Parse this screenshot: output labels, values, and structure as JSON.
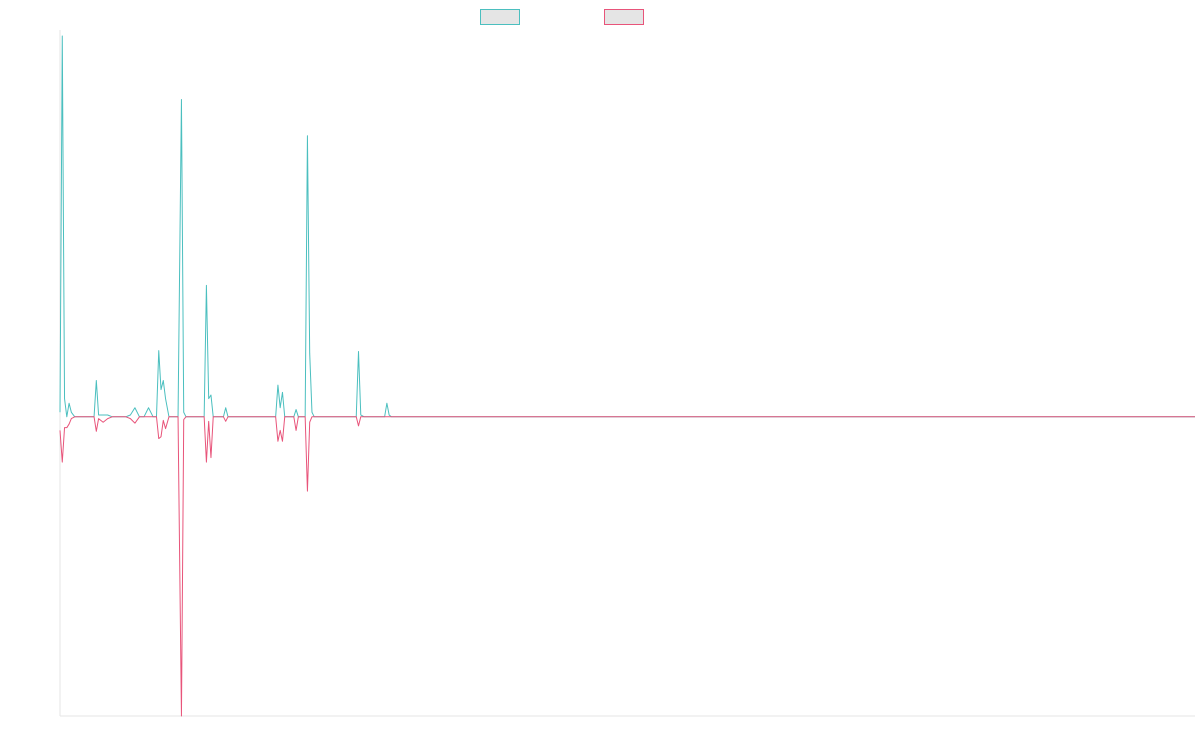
{
  "chart_data": {
    "type": "line",
    "title": "",
    "xlabel": "",
    "ylabel": "",
    "grid": false,
    "legend": "top-center",
    "xlim": [
      0,
      1000
    ],
    "ylim": [
      -33,
      42
    ],
    "series": [
      {
        "name": "",
        "color": "#4bbfbf",
        "points": [
          [
            0,
            0.5
          ],
          [
            2,
            42
          ],
          [
            4,
            2
          ],
          [
            6,
            0
          ],
          [
            8,
            1.5
          ],
          [
            10,
            0.5
          ],
          [
            13,
            0
          ],
          [
            16,
            0
          ],
          [
            20,
            0
          ],
          [
            24,
            0
          ],
          [
            28,
            0
          ],
          [
            30,
            0
          ],
          [
            32,
            4
          ],
          [
            34,
            0.2
          ],
          [
            38,
            0.2
          ],
          [
            42,
            0.2
          ],
          [
            46,
            0
          ],
          [
            52,
            0
          ],
          [
            58,
            0
          ],
          [
            62,
            0.2
          ],
          [
            66,
            1
          ],
          [
            70,
            0
          ],
          [
            74,
            0
          ],
          [
            78,
            1
          ],
          [
            82,
            0
          ],
          [
            85,
            0
          ],
          [
            87,
            7.3
          ],
          [
            89,
            3
          ],
          [
            91,
            4
          ],
          [
            93,
            2
          ],
          [
            96,
            0
          ],
          [
            100,
            0
          ],
          [
            104,
            0
          ],
          [
            107,
            35
          ],
          [
            109,
            0.5
          ],
          [
            111,
            0
          ],
          [
            116,
            0
          ],
          [
            120,
            0
          ],
          [
            124,
            0
          ],
          [
            127,
            0
          ],
          [
            129,
            14.5
          ],
          [
            131,
            2
          ],
          [
            133,
            2.4
          ],
          [
            135,
            0
          ],
          [
            140,
            0
          ],
          [
            144,
            0
          ],
          [
            146,
            1
          ],
          [
            148,
            0
          ],
          [
            152,
            0
          ],
          [
            160,
            0
          ],
          [
            168,
            0
          ],
          [
            176,
            0
          ],
          [
            184,
            0
          ],
          [
            190,
            0
          ],
          [
            192,
            3.5
          ],
          [
            194,
            1
          ],
          [
            196,
            2.7
          ],
          [
            198,
            0
          ],
          [
            202,
            0
          ],
          [
            206,
            0
          ],
          [
            208,
            0.8
          ],
          [
            210,
            0
          ],
          [
            214,
            0
          ],
          [
            216,
            0
          ],
          [
            218,
            31
          ],
          [
            220,
            7
          ],
          [
            222,
            0.5
          ],
          [
            224,
            0
          ],
          [
            230,
            0
          ],
          [
            236,
            0
          ],
          [
            242,
            0
          ],
          [
            248,
            0
          ],
          [
            254,
            0
          ],
          [
            258,
            0
          ],
          [
            261,
            0
          ],
          [
            263,
            7.2
          ],
          [
            265,
            0.2
          ],
          [
            268,
            0
          ],
          [
            274,
            0
          ],
          [
            280,
            0
          ],
          [
            286,
            0
          ],
          [
            288,
            1.5
          ],
          [
            290,
            0.2
          ],
          [
            292,
            0
          ],
          [
            300,
            0
          ],
          [
            400,
            0
          ],
          [
            500,
            0
          ],
          [
            600,
            0
          ],
          [
            700,
            0
          ],
          [
            800,
            0
          ],
          [
            900,
            0
          ],
          [
            1000,
            0
          ]
        ]
      },
      {
        "name": "",
        "color": "#e8547a",
        "points": [
          [
            0,
            -1.5
          ],
          [
            2,
            -5
          ],
          [
            4,
            -1.2
          ],
          [
            6,
            -1.2
          ],
          [
            8,
            -0.8
          ],
          [
            10,
            -0.2
          ],
          [
            13,
            0
          ],
          [
            16,
            0
          ],
          [
            20,
            0
          ],
          [
            24,
            0
          ],
          [
            28,
            0
          ],
          [
            30,
            0
          ],
          [
            32,
            -1.6
          ],
          [
            34,
            -0.2
          ],
          [
            38,
            -0.6
          ],
          [
            42,
            -0.2
          ],
          [
            46,
            0
          ],
          [
            52,
            0
          ],
          [
            58,
            0
          ],
          [
            62,
            -0.2
          ],
          [
            66,
            -0.7
          ],
          [
            70,
            0
          ],
          [
            74,
            0
          ],
          [
            78,
            0
          ],
          [
            82,
            0
          ],
          [
            85,
            0
          ],
          [
            87,
            -2.4
          ],
          [
            89,
            -2.2
          ],
          [
            91,
            -0.4
          ],
          [
            93,
            -1.3
          ],
          [
            96,
            0
          ],
          [
            100,
            0
          ],
          [
            104,
            0
          ],
          [
            107,
            -33
          ],
          [
            109,
            -0.3
          ],
          [
            111,
            0
          ],
          [
            116,
            0
          ],
          [
            120,
            0
          ],
          [
            124,
            0
          ],
          [
            127,
            0
          ],
          [
            129,
            -5
          ],
          [
            131,
            -0.5
          ],
          [
            133,
            -4.5
          ],
          [
            135,
            0
          ],
          [
            140,
            0
          ],
          [
            144,
            0
          ],
          [
            146,
            -0.5
          ],
          [
            148,
            0
          ],
          [
            152,
            0
          ],
          [
            160,
            0
          ],
          [
            168,
            0
          ],
          [
            176,
            0
          ],
          [
            184,
            0
          ],
          [
            190,
            0
          ],
          [
            192,
            -2.7
          ],
          [
            194,
            -1.5
          ],
          [
            196,
            -2.7
          ],
          [
            198,
            0
          ],
          [
            202,
            0
          ],
          [
            206,
            0
          ],
          [
            208,
            -1.5
          ],
          [
            210,
            0
          ],
          [
            214,
            0
          ],
          [
            216,
            0
          ],
          [
            218,
            -8.2
          ],
          [
            220,
            -0.6
          ],
          [
            222,
            0
          ],
          [
            224,
            0
          ],
          [
            230,
            0
          ],
          [
            236,
            0
          ],
          [
            242,
            0
          ],
          [
            248,
            0
          ],
          [
            254,
            0
          ],
          [
            258,
            0
          ],
          [
            261,
            0
          ],
          [
            263,
            -1
          ],
          [
            265,
            0
          ],
          [
            268,
            0
          ],
          [
            274,
            0
          ],
          [
            280,
            0
          ],
          [
            286,
            0
          ],
          [
            288,
            0
          ],
          [
            290,
            0
          ],
          [
            292,
            0
          ],
          [
            300,
            0
          ],
          [
            400,
            0
          ],
          [
            500,
            0
          ],
          [
            600,
            0
          ],
          [
            700,
            0
          ],
          [
            800,
            0
          ],
          [
            900,
            0
          ],
          [
            1000,
            0
          ]
        ]
      }
    ]
  }
}
